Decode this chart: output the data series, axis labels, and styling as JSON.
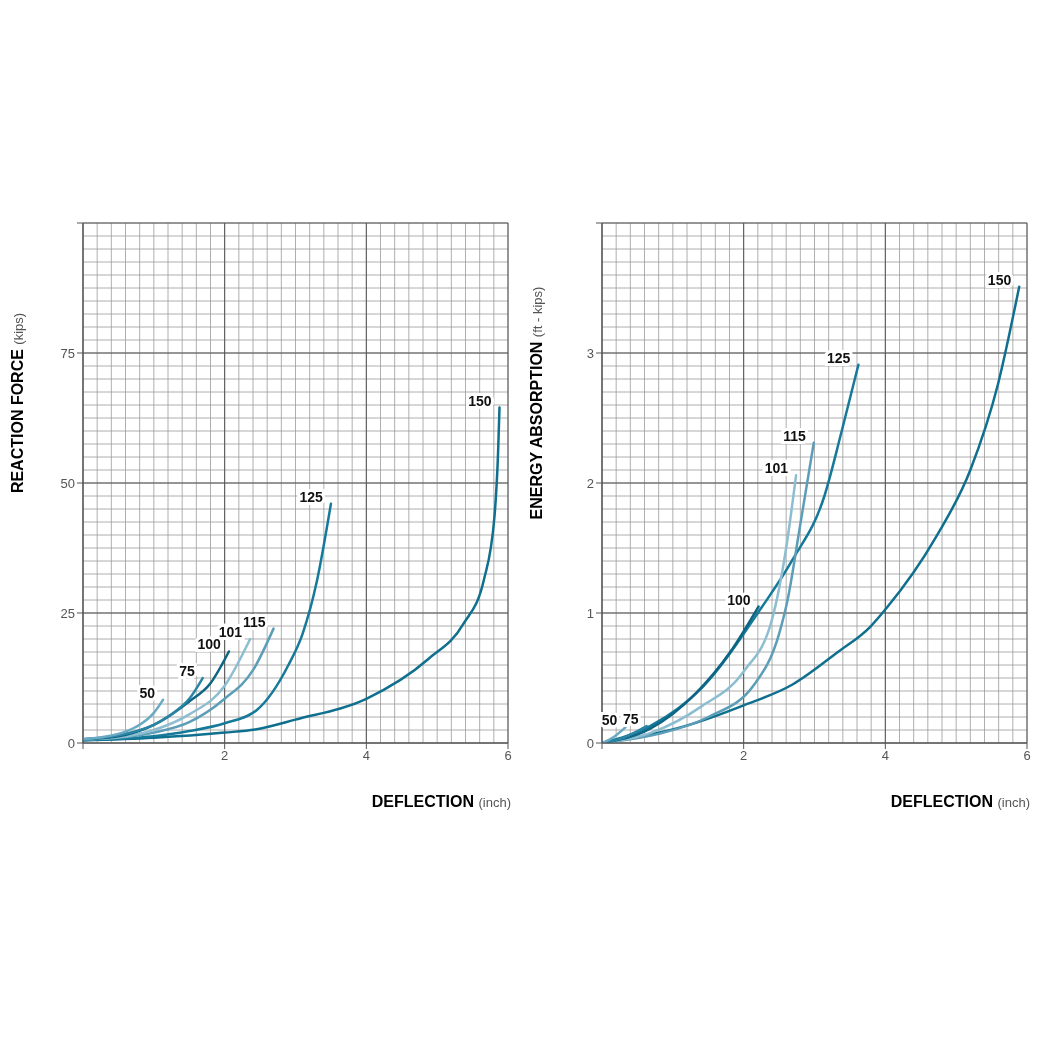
{
  "chart_data": [
    {
      "type": "line",
      "xlabel": "DEFLECTION (inch)",
      "ylabel": "REACTION FORCE (kips)",
      "xlim": [
        0,
        6
      ],
      "xticks": [
        {
          "value": 0,
          "label": null
        },
        2,
        4,
        6
      ],
      "ylim": [
        0,
        100
      ],
      "yticks": [
        0,
        25,
        50,
        75,
        {
          "value": 100,
          "label": null
        }
      ],
      "grid": true,
      "series": [
        {
          "name": "50",
          "color": "#6aa9c2",
          "x": [
            0,
            0.3,
            0.6,
            0.8,
            1.0,
            1.13
          ],
          "values": [
            0.7,
            1.2,
            2.2,
            3.5,
            5.8,
            8.3
          ]
        },
        {
          "name": "75",
          "color": "#2a84a3",
          "x": [
            0,
            0.5,
            1.0,
            1.3,
            1.5,
            1.69
          ],
          "values": [
            0.7,
            1.5,
            3.5,
            6,
            8.5,
            12.5
          ]
        },
        {
          "name": "100",
          "color": "#0d6584",
          "x": [
            0,
            0.5,
            1.0,
            1.5,
            1.8,
            2.06
          ],
          "values": [
            0.7,
            1.3,
            3.5,
            8,
            11.5,
            17.6
          ]
        },
        {
          "name": "101",
          "color": "#8dbdd0",
          "x": [
            0,
            0.5,
            1.0,
            1.5,
            2.0,
            2.36
          ],
          "values": [
            0.7,
            1.1,
            2.5,
            5.5,
            11,
            20
          ]
        },
        {
          "name": "115",
          "color": "#5c9db8",
          "x": [
            0,
            0.5,
            1,
            1.5,
            2,
            2.4,
            2.69
          ],
          "values": [
            0.7,
            1,
            2,
            4,
            8.5,
            14,
            22
          ]
        },
        {
          "name": "125",
          "color": "#15799a",
          "x": [
            0,
            1,
            1.5,
            2,
            2.45,
            2.9,
            3.1,
            3.3,
            3.5
          ],
          "values": [
            0.6,
            1.3,
            2.3,
            3.8,
            6.3,
            15,
            21,
            31,
            46
          ]
        },
        {
          "name": "150",
          "color": "#0f6f8e",
          "x": [
            0,
            1,
            2,
            2.43,
            3,
            4,
            4.88,
            5.37,
            5.66,
            5.81,
            5.86,
            5.88
          ],
          "values": [
            0.5,
            1,
            2,
            2.6,
            4.5,
            8.5,
            16.2,
            22.9,
            31.4,
            43.7,
            55.9,
            64.5
          ]
        }
      ]
    },
    {
      "type": "line",
      "xlabel": "DEFLECTION (inch)",
      "ylabel": "ENERGY ABSORPTION (ft - kips)",
      "xlim": [
        0,
        6
      ],
      "xticks": [
        {
          "value": 0,
          "label": null
        },
        2,
        4,
        6
      ],
      "ylim": [
        0,
        4
      ],
      "yticks": [
        0,
        1,
        2,
        3,
        {
          "value": 4,
          "label": null
        }
      ],
      "grid": true,
      "series": [
        {
          "name": "50",
          "color": "#6aa9c2",
          "x": [
            0,
            0.15,
            0.33
          ],
          "values": [
            0,
            0.04,
            0.12
          ]
        },
        {
          "name": "75",
          "color": "#2a84a3",
          "x": [
            0,
            0.3,
            0.63
          ],
          "values": [
            0,
            0.04,
            0.13
          ]
        },
        {
          "name": "100",
          "color": "#0d6584",
          "x": [
            0,
            0.68,
            1.32,
            1.81,
            2.21
          ],
          "values": [
            0,
            0.11,
            0.38,
            0.7,
            1.05
          ]
        },
        {
          "name": "101",
          "color": "#8dbdd0",
          "x": [
            0,
            0.7,
            1.4,
            2.0,
            2.4,
            2.6,
            2.74
          ],
          "values": [
            0,
            0.08,
            0.28,
            0.55,
            0.95,
            1.5,
            2.06
          ]
        },
        {
          "name": "115",
          "color": "#5c9db8",
          "x": [
            0,
            0.8,
            1.5,
            2.15,
            2.5,
            2.62,
            2.79,
            2.99
          ],
          "values": [
            0,
            0.07,
            0.2,
            0.45,
            0.84,
            1.1,
            1.65,
            2.31
          ]
        },
        {
          "name": "125",
          "color": "#15799a",
          "x": [
            0,
            0.68,
            1.42,
            2.25,
            2.69,
            3.14,
            3.38,
            3.62
          ],
          "values": [
            0,
            0.13,
            0.43,
            1.04,
            1.41,
            1.9,
            2.39,
            2.91
          ]
        },
        {
          "name": "150",
          "color": "#0f6f8e",
          "x": [
            0,
            1.17,
            2.0,
            2.69,
            3.33,
            3.78,
            4.02,
            4.71,
            5.2,
            5.59,
            5.89
          ],
          "values": [
            0,
            0.13,
            0.29,
            0.45,
            0.7,
            0.89,
            1.04,
            1.58,
            2.1,
            2.76,
            3.51
          ]
        }
      ]
    }
  ]
}
